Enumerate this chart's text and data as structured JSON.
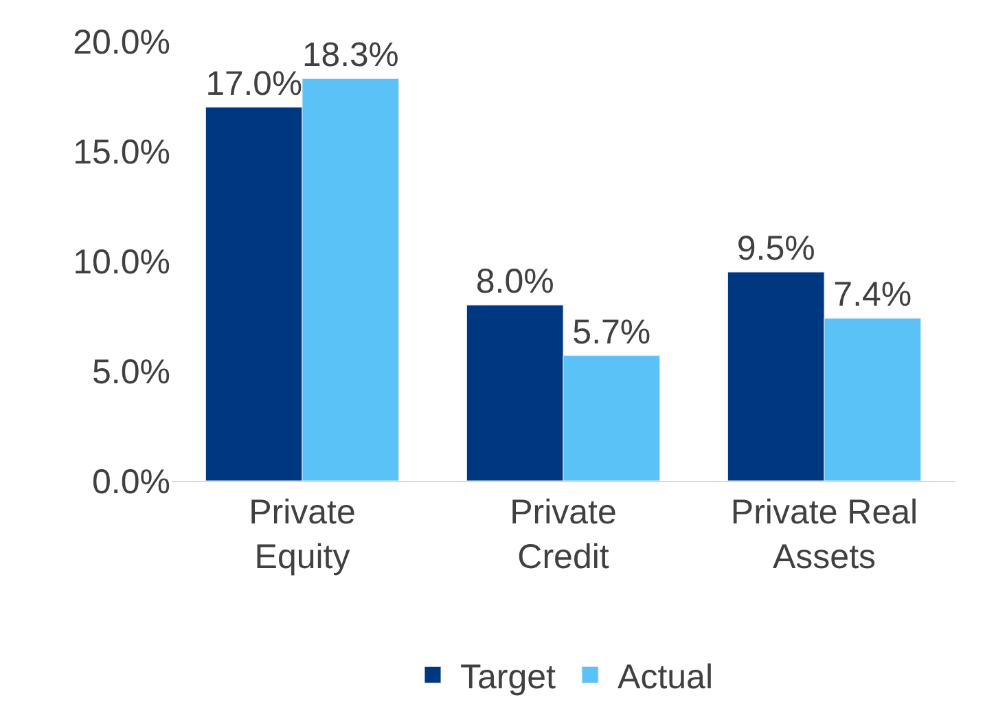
{
  "chart_data": {
    "type": "bar",
    "categories": [
      "Private Equity",
      "Private Credit",
      "Private Real Assets"
    ],
    "series": [
      {
        "name": "Target",
        "color": "#003781",
        "values": [
          17.0,
          8.0,
          9.5
        ],
        "value_labels": [
          "17.0%",
          "8.0%",
          "9.5%"
        ]
      },
      {
        "name": "Actual",
        "color": "#5bc2f7",
        "values": [
          18.3,
          5.7,
          7.4
        ],
        "value_labels": [
          "18.3%",
          "5.7%",
          "7.4%"
        ]
      }
    ],
    "ylim": [
      0,
      20
    ],
    "yticks": [
      {
        "value": 0,
        "label": "0.0%"
      },
      {
        "value": 5,
        "label": "5.0%"
      },
      {
        "value": 10,
        "label": "10.0%"
      },
      {
        "value": 15,
        "label": "15.0%"
      },
      {
        "value": 20,
        "label": "20.0%"
      }
    ],
    "grid": false,
    "legend": "bottom"
  }
}
